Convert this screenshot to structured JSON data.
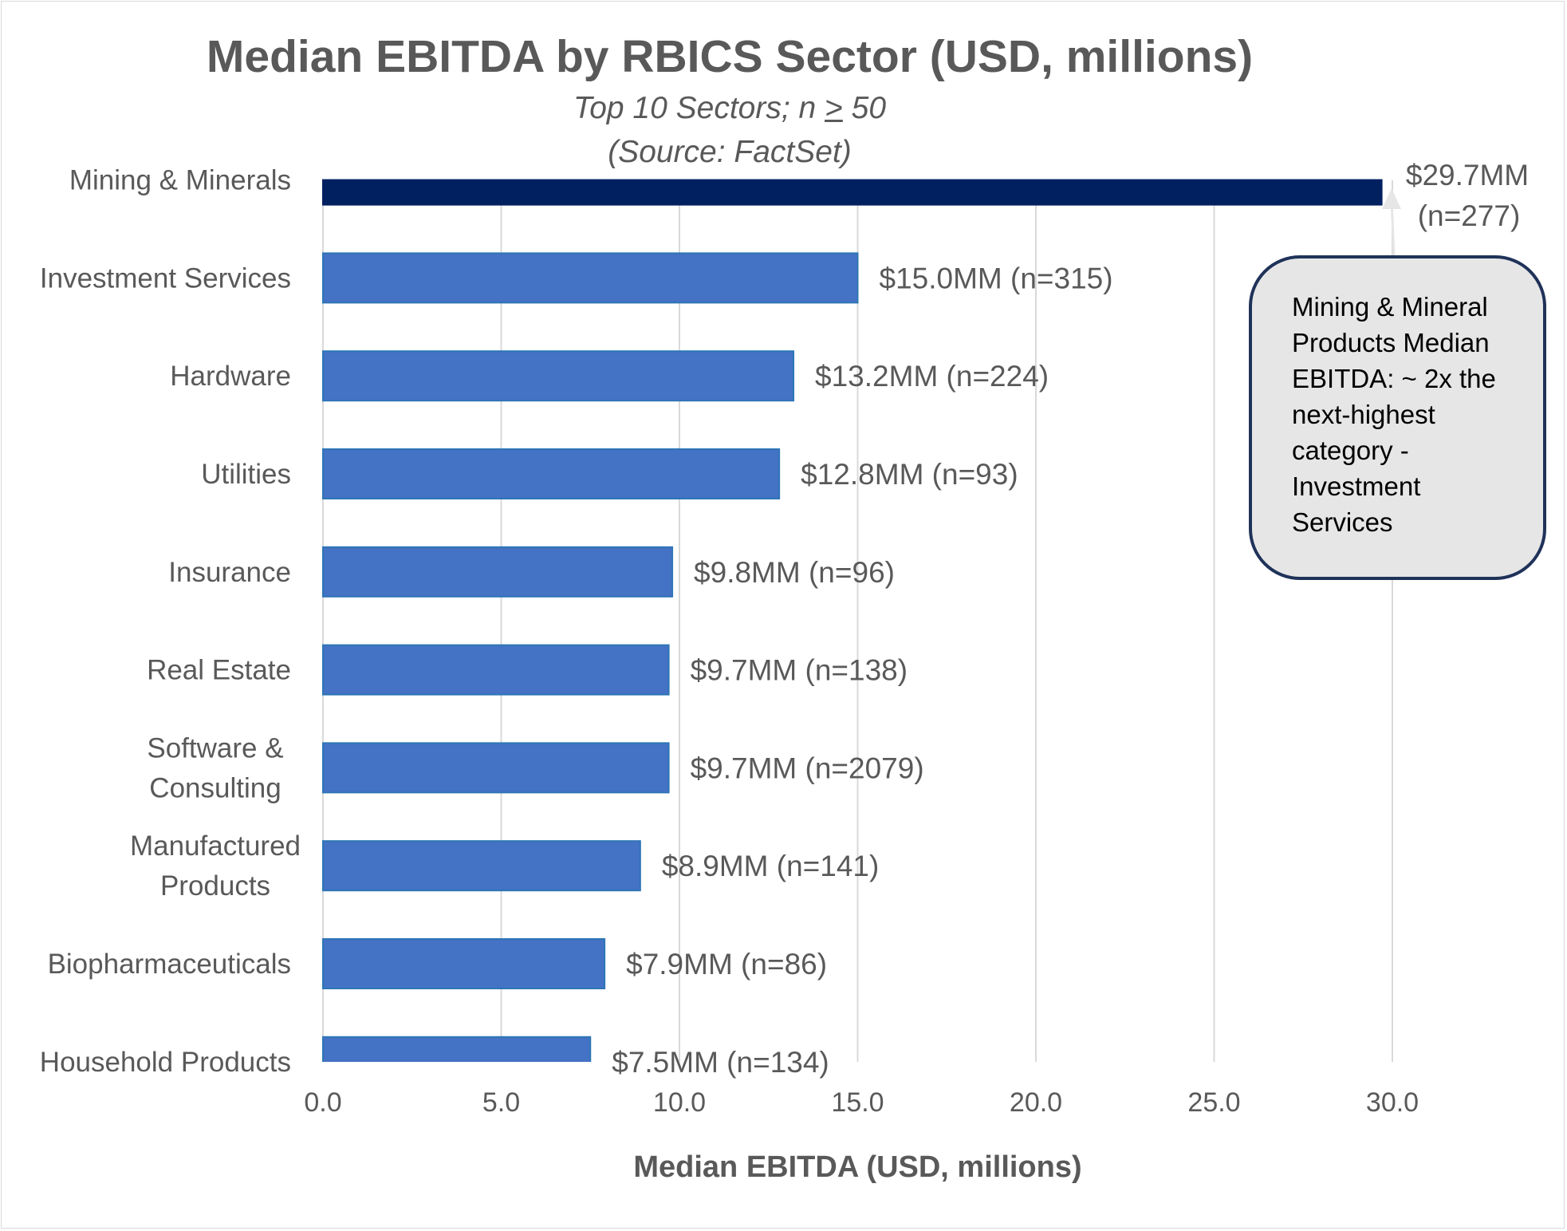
{
  "chart_data": {
    "type": "bar",
    "orientation": "horizontal",
    "title": "Median EBITDA by RBICS Sector (USD, millions)",
    "subtitle": {
      "line1_prefix": "Top 10 Sectors; n ",
      "line1_symbol": ">",
      "line1_suffix": " 50",
      "line2": "(Source: FactSet)"
    },
    "xlabel": "Median EBITDA (USD, millions)",
    "ylabel": "",
    "xlim": [
      0,
      30
    ],
    "xticks": [
      "0.0",
      "5.0",
      "10.0",
      "15.0",
      "20.0",
      "25.0",
      "30.0"
    ],
    "grid": true,
    "categories": [
      [
        "Mining & Minerals"
      ],
      [
        "Investment Services"
      ],
      [
        "Hardware"
      ],
      [
        "Utilities"
      ],
      [
        "Insurance"
      ],
      [
        "Real Estate"
      ],
      [
        "Software &",
        "Consulting"
      ],
      [
        "Manufactured",
        "Products"
      ],
      [
        "Biopharmaceuticals"
      ],
      [
        "Household Products"
      ]
    ],
    "values": [
      29.7,
      15.0,
      13.2,
      12.8,
      9.8,
      9.7,
      9.7,
      8.9,
      7.9,
      7.5
    ],
    "data_labels": [
      [
        "$29.7MM",
        "(n=277)"
      ],
      [
        "$15.0MM (n=315)"
      ],
      [
        "$13.2MM (n=224)"
      ],
      [
        "$12.8MM (n=93)"
      ],
      [
        "$9.8MM (n=96)"
      ],
      [
        "$9.7MM (n=138)"
      ],
      [
        "$9.7MM (n=2079)"
      ],
      [
        "$8.9MM (n=141)"
      ],
      [
        "$7.9MM (n=86)"
      ],
      [
        "$7.5MM (n=134)"
      ]
    ],
    "colors": {
      "highlight": "#002060",
      "bar": "#4472C4",
      "bar_edge": "#2E75B6",
      "grid": "#D9D9D9",
      "text": "#595959"
    },
    "annotation": {
      "lines": [
        "Mining & Mineral",
        "Products Median",
        "EBITDA: ~ 2x the",
        "next-highest",
        "category -",
        "Investment",
        "Services"
      ],
      "target": "Mining & Minerals"
    }
  }
}
